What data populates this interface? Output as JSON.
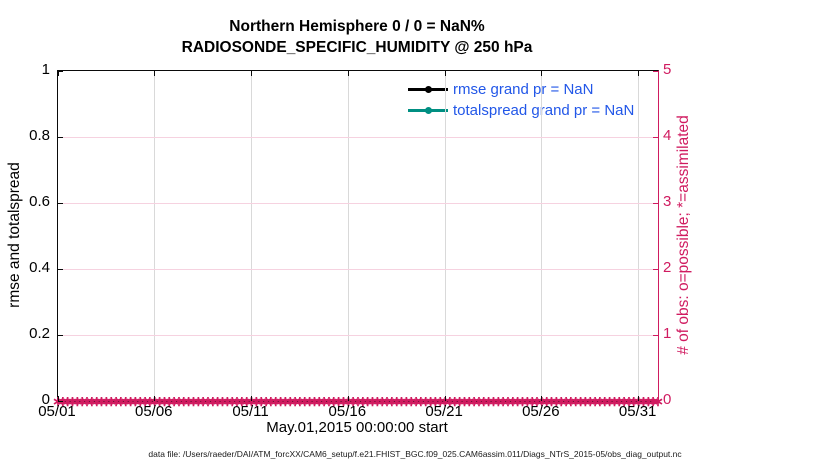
{
  "figure": {
    "title_line1": "Northern Hemisphere 0 / 0 = NaN%",
    "title_line2": "RADIOSONDE_SPECIFIC_HUMIDITY @ 250 hPa",
    "xlabel": "May.01,2015 00:00:00 start",
    "ylabel_left": "rmse and totalspread",
    "ylabel_right": "# of obs: o=possible; *=assimilated",
    "footer": "data file: /Users/raeder/DAI/ATM_forcXX/CAM6_setup/f.e21.FHIST_BGC.f09_025.CAM6assim.011/Diags_NTrS_2015-05/obs_diag_output.nc"
  },
  "legend": {
    "text_color": "#2257e8",
    "items": [
      {
        "name": "rmse",
        "label": "rmse grand pr = NaN",
        "color": "#000000"
      },
      {
        "name": "totalspread",
        "label": "totalspread grand pr = NaN",
        "color": "#008f82"
      }
    ]
  },
  "chart_data": {
    "type": "line",
    "title": "Northern Hemisphere 0 / 0 = NaN% — RADIOSONDE_SPECIFIC_HUMIDITY @ 250 hPa",
    "x_ticks": [
      "05/01",
      "05/06",
      "05/11",
      "05/16",
      "05/21",
      "05/26",
      "05/31"
    ],
    "x_range_days": [
      0,
      31
    ],
    "x_tick_day_step": 5,
    "y_left_ticks": [
      "0",
      "0.2",
      "0.4",
      "0.6",
      "0.8",
      "1"
    ],
    "y_left_range": [
      0,
      1
    ],
    "y_right_ticks": [
      "0",
      "1",
      "2",
      "3",
      "4",
      "5"
    ],
    "y_right_range": [
      0,
      5
    ],
    "grid": true,
    "series": [
      {
        "name": "rmse",
        "grand_pr": "NaN",
        "color": "#000000",
        "values": []
      },
      {
        "name": "totalspread",
        "grand_pr": "NaN",
        "color": "#008f82",
        "values": []
      }
    ],
    "obs_markers": {
      "description": "# of obs (possible 0 / assimilated 0) at every 6-hour analysis time, all values 0",
      "y_value": 0,
      "count": 125,
      "symbol": "∗",
      "color": "#d01b60"
    },
    "colors": {
      "right_axis": "#d01b60",
      "grid_x": "#d9d9d9",
      "grid_y": "#f6d2e0",
      "legend_text": "#2257e8"
    }
  }
}
